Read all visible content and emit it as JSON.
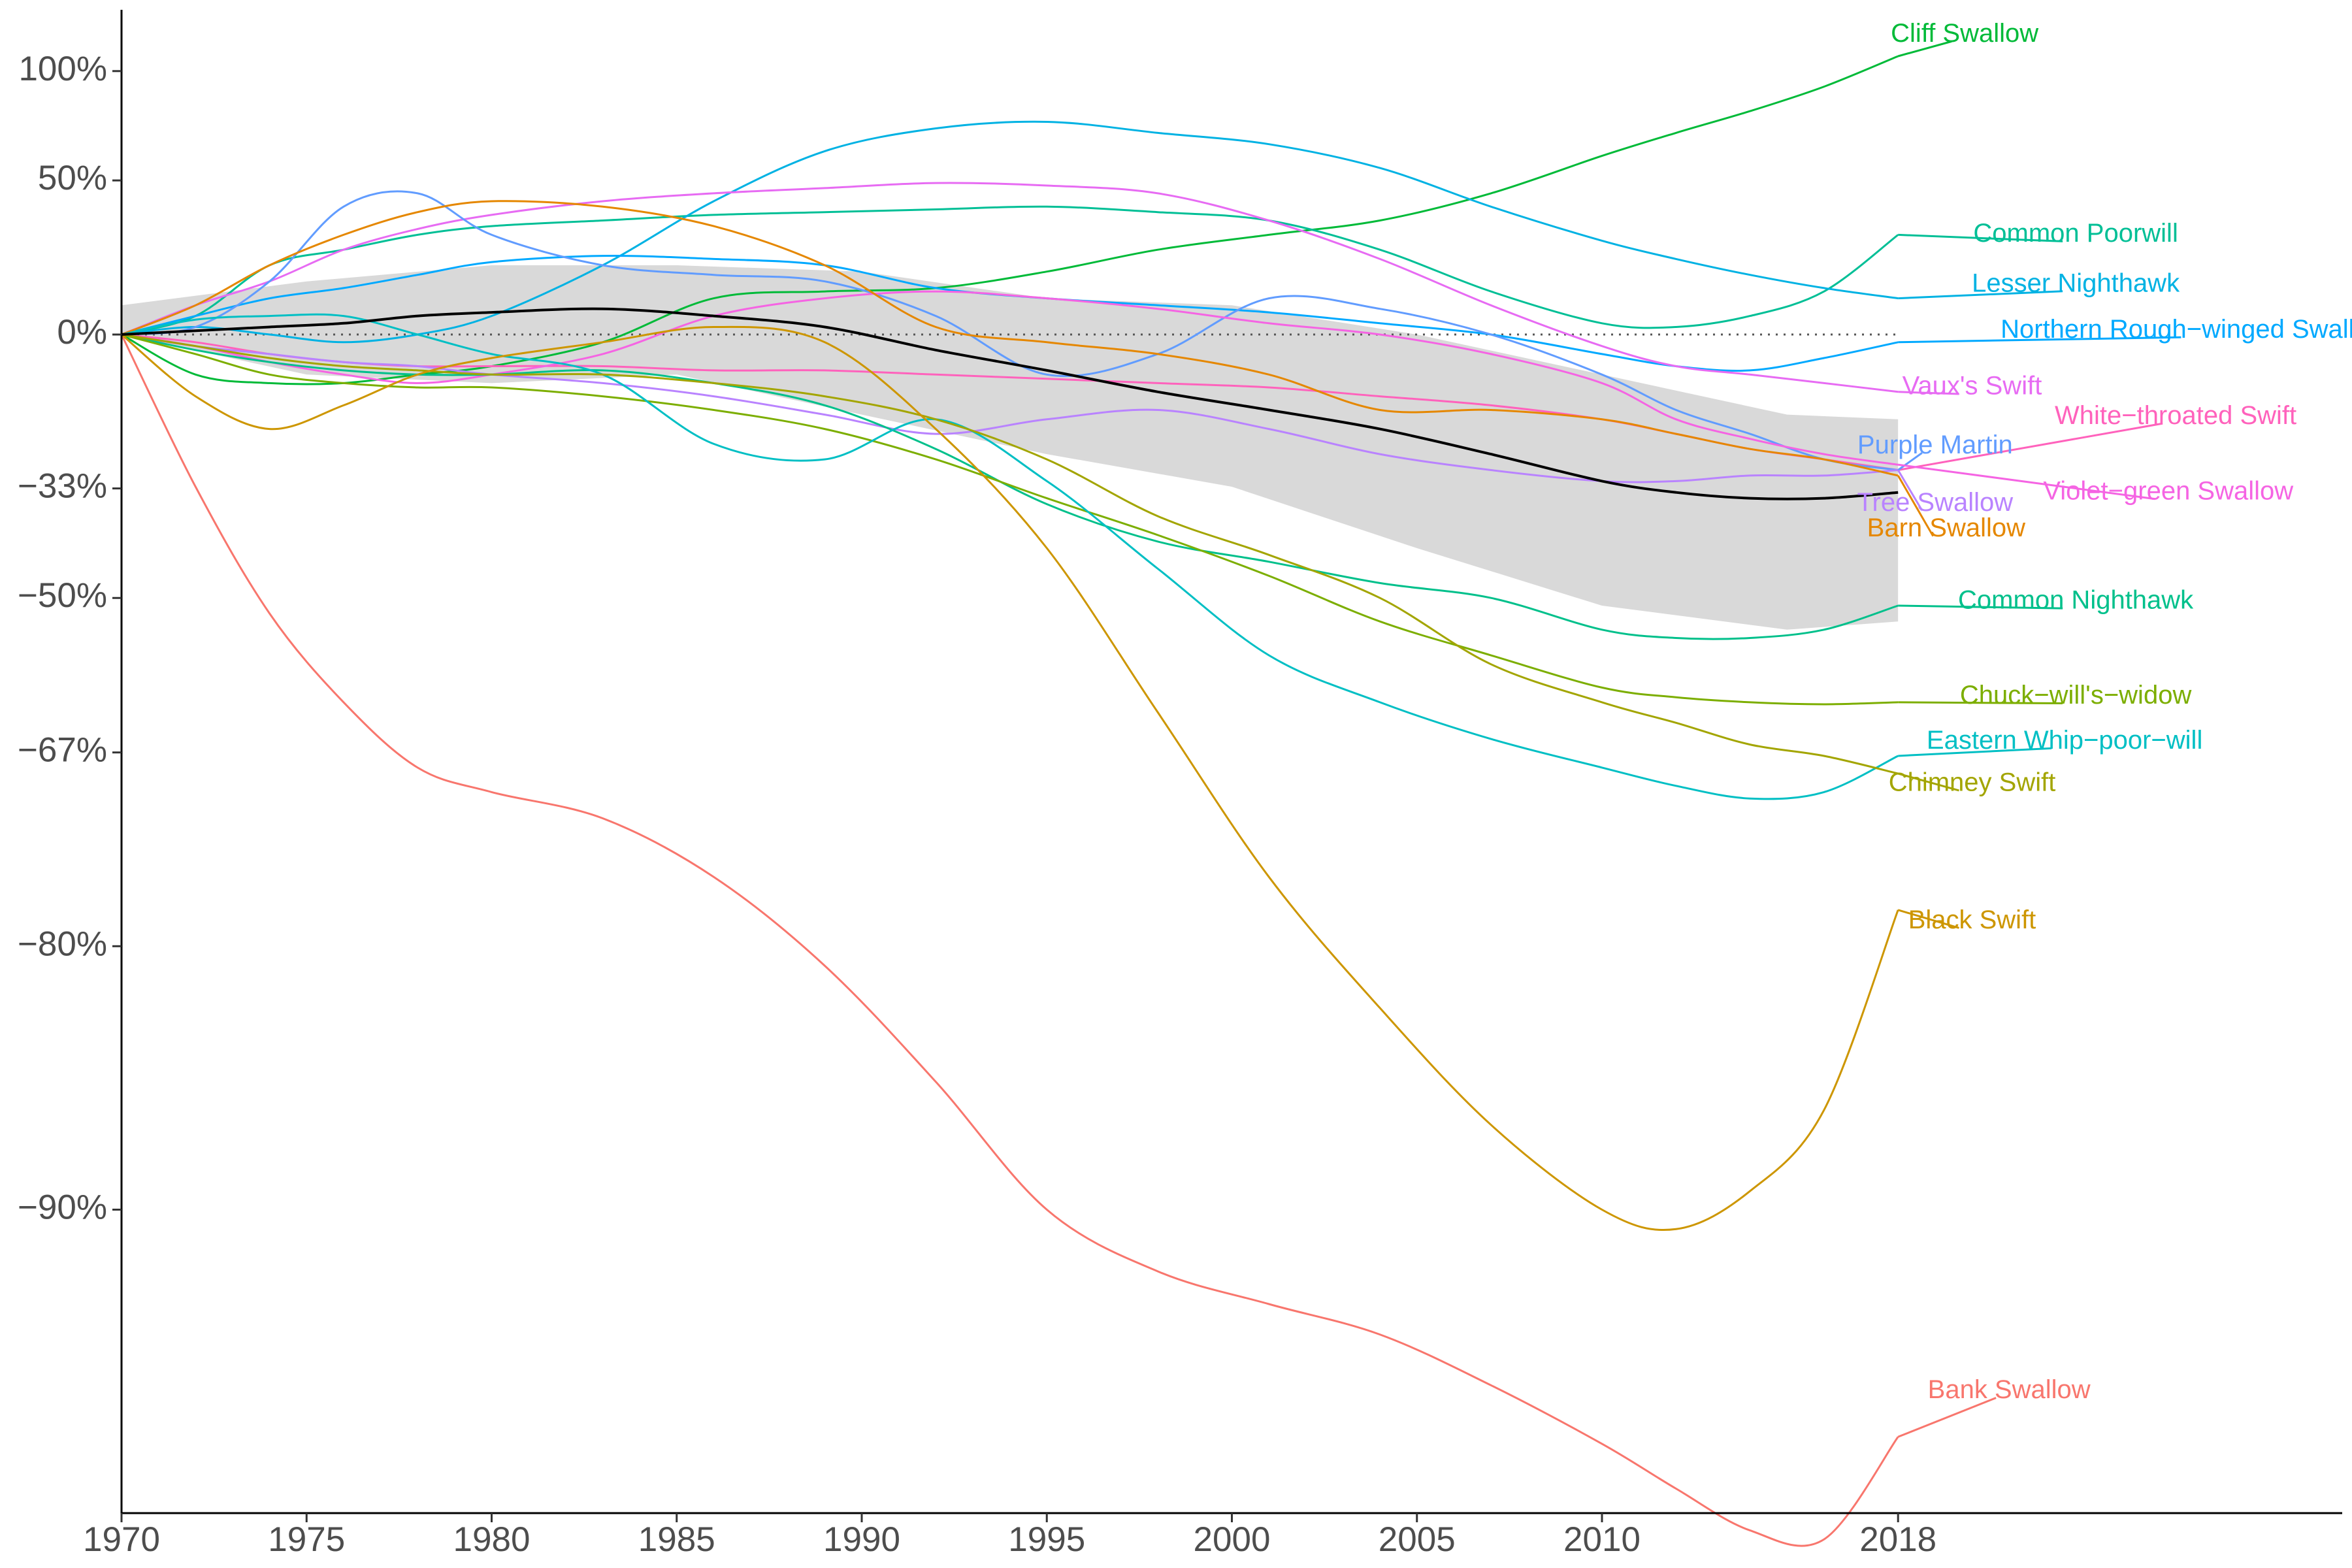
{
  "chart_data": {
    "type": "line",
    "title": "",
    "xlabel": "",
    "ylabel": "",
    "xlim": [
      1970,
      2030
    ],
    "x_ticks": [
      {
        "value": 1970,
        "label": "1970"
      },
      {
        "value": 1975,
        "label": "1975"
      },
      {
        "value": 1980,
        "label": "1980"
      },
      {
        "value": 1985,
        "label": "1985"
      },
      {
        "value": 1990,
        "label": "1990"
      },
      {
        "value": 1995,
        "label": "1995"
      },
      {
        "value": 2000,
        "label": "2000"
      },
      {
        "value": 2005,
        "label": "2005"
      },
      {
        "value": 2010,
        "label": "2010"
      },
      {
        "value": 2018,
        "label": "2018"
      }
    ],
    "y_scale": "log-ratio",
    "ylim": [
      -0.955,
      1.35
    ],
    "y_ticks": [
      {
        "value": 1.0,
        "label": "100%"
      },
      {
        "value": 0.5,
        "label": "50%"
      },
      {
        "value": 0.0,
        "label": "0%"
      },
      {
        "value": -0.333,
        "label": "−33%"
      },
      {
        "value": -0.5,
        "label": "−50%"
      },
      {
        "value": -0.667,
        "label": "−67%"
      },
      {
        "value": -0.8,
        "label": "−80%"
      },
      {
        "value": -0.9,
        "label": "−90%"
      }
    ],
    "zero_line": true,
    "grid": false,
    "legend": "none",
    "band": {
      "color": "#d9d9d9",
      "x": [
        1970,
        1975,
        1980,
        1985,
        1990,
        1995,
        2000,
        2005,
        2010,
        2015,
        2018
      ],
      "upper": [
        0.08,
        0.15,
        0.2,
        0.2,
        0.18,
        0.1,
        0.08,
        0.0,
        -0.1,
        -0.19,
        -0.2
      ],
      "lower": [
        0.0,
        -0.1,
        -0.12,
        -0.1,
        -0.19,
        -0.27,
        -0.33,
        -0.43,
        -0.51,
        -0.54,
        -0.53
      ]
    },
    "x": [
      1970,
      1972,
      1974,
      1976,
      1978,
      1980,
      1983,
      1986,
      1989,
      1992,
      1995,
      1998,
      2001,
      2004,
      2007,
      2010,
      2012,
      2014,
      2016,
      2018
    ],
    "series": [
      {
        "name": "Bank Swallow",
        "color": "#f8766d",
        "values": [
          0.0,
          -0.33,
          -0.52,
          -0.62,
          -0.68,
          -0.7,
          -0.72,
          -0.76,
          -0.81,
          -0.86,
          -0.9,
          -0.915,
          -0.922,
          -0.928,
          -0.937,
          -0.946,
          -0.952,
          -0.957,
          -0.958,
          -0.945
        ],
        "label_x": 2021.0,
        "label_y": -0.938
      },
      {
        "name": "Cliff Swallow",
        "color": "#00ba38",
        "values": [
          0.0,
          -0.1,
          -0.12,
          -0.12,
          -0.1,
          -0.08,
          -0.02,
          0.1,
          0.12,
          0.13,
          0.18,
          0.25,
          0.3,
          0.35,
          0.45,
          0.6,
          0.7,
          0.8,
          0.92,
          1.08
        ],
        "label_x": 2019.8,
        "label_y": 1.2
      },
      {
        "name": "Common Poorwill",
        "color": "#00bf96",
        "values": [
          0.0,
          0.05,
          0.2,
          0.25,
          0.3,
          0.33,
          0.35,
          0.37,
          0.38,
          0.39,
          0.4,
          0.38,
          0.35,
          0.25,
          0.12,
          0.03,
          0.02,
          0.05,
          0.12,
          0.3
        ],
        "label_x": 2022.8,
        "label_y": 0.3
      },
      {
        "name": "Lesser Nighthawk",
        "color": "#00b2e3",
        "values": [
          0.0,
          0.02,
          0.0,
          -0.02,
          0.0,
          0.05,
          0.2,
          0.42,
          0.62,
          0.72,
          0.75,
          0.7,
          0.65,
          0.55,
          0.4,
          0.28,
          0.22,
          0.17,
          0.13,
          0.1
        ],
        "label_x": 2022.8,
        "label_y": 0.14
      },
      {
        "name": "Northern Rough−winged Swallow",
        "color": "#00a9ff",
        "values": [
          0.0,
          0.05,
          0.1,
          0.13,
          0.17,
          0.21,
          0.23,
          0.22,
          0.2,
          0.13,
          0.1,
          0.08,
          0.06,
          0.03,
          0.0,
          -0.05,
          -0.08,
          -0.09,
          -0.06,
          -0.02
        ],
        "label_x": 2026.0,
        "label_y": 0.01
      },
      {
        "name": "Vaux's Swift",
        "color": "#e76bf3",
        "values": [
          0.0,
          0.08,
          0.15,
          0.25,
          0.32,
          0.37,
          0.42,
          0.45,
          0.47,
          0.49,
          0.48,
          0.45,
          0.35,
          0.22,
          0.08,
          -0.03,
          -0.08,
          -0.1,
          -0.12,
          -0.14
        ],
        "label_x": 2020.0,
        "label_y": -0.13
      },
      {
        "name": "White−throated Swift",
        "color": "#ff62bc",
        "values": [
          0.0,
          -0.02,
          -0.05,
          -0.07,
          -0.08,
          -0.08,
          -0.08,
          -0.09,
          -0.09,
          -0.1,
          -0.11,
          -0.12,
          -0.13,
          -0.15,
          -0.17,
          -0.2,
          -0.23,
          -0.26,
          -0.28,
          -0.3
        ],
        "label_x": 2025.5,
        "label_y": -0.195
      },
      {
        "name": "Purple Martin",
        "color": "#619cff",
        "values": [
          0.0,
          0.02,
          0.15,
          0.4,
          0.45,
          0.3,
          0.2,
          0.17,
          0.15,
          0.05,
          -0.1,
          -0.05,
          0.1,
          0.07,
          0.0,
          -0.1,
          -0.18,
          -0.23,
          -0.28,
          -0.3
        ],
        "label_x": 2019.0,
        "label_y": -0.255
      },
      {
        "name": "Violet−green Swallow",
        "color": "#f564e3",
        "values": [
          0.0,
          -0.03,
          -0.07,
          -0.1,
          -0.12,
          -0.1,
          -0.05,
          0.05,
          0.1,
          0.12,
          0.1,
          0.07,
          0.03,
          0.0,
          -0.05,
          -0.12,
          -0.2,
          -0.24,
          -0.27,
          -0.29
        ],
        "label_x": 2025.3,
        "label_y": -0.34
      },
      {
        "name": "Tree Swallow",
        "color": "#b983ff",
        "values": [
          0.0,
          -0.03,
          -0.05,
          -0.07,
          -0.08,
          -0.1,
          -0.12,
          -0.15,
          -0.19,
          -0.23,
          -0.2,
          -0.18,
          -0.22,
          -0.27,
          -0.3,
          -0.32,
          -0.32,
          -0.31,
          -0.31,
          -0.3
        ],
        "label_x": 2019.0,
        "label_y": -0.3595
      },
      {
        "name": "Barn Swallow",
        "color": "#e58700",
        "values": [
          0.0,
          0.08,
          0.2,
          0.3,
          0.38,
          0.42,
          0.4,
          0.33,
          0.2,
          0.02,
          -0.02,
          -0.05,
          -0.1,
          -0.18,
          -0.18,
          -0.2,
          -0.23,
          -0.26,
          -0.28,
          -0.31
        ],
        "label_x": 2019.3,
        "label_y": -0.4015
      },
      {
        "name": "Common Nighthawk",
        "color": "#00c08b",
        "values": [
          0.0,
          -0.04,
          -0.07,
          -0.09,
          -0.1,
          -0.1,
          -0.09,
          -0.12,
          -0.17,
          -0.26,
          -0.36,
          -0.42,
          -0.45,
          -0.48,
          -0.5,
          -0.54,
          -0.55,
          -0.55,
          -0.54,
          -0.51
        ],
        "label_x": 2022.8,
        "label_y": -0.505
      },
      {
        "name": "Chuck−will's−widow",
        "color": "#7cae00",
        "values": [
          0.0,
          -0.05,
          -0.1,
          -0.12,
          -0.13,
          -0.13,
          -0.15,
          -0.18,
          -0.22,
          -0.28,
          -0.35,
          -0.41,
          -0.47,
          -0.53,
          -0.57,
          -0.605,
          -0.615,
          -0.62,
          -0.622,
          -0.62
        ],
        "label_x": 2022.8,
        "label_y": -0.6145
      },
      {
        "name": "Eastern Whip−poor−will",
        "color": "#00bfc4",
        "values": [
          0.0,
          0.04,
          0.05,
          0.05,
          0.0,
          -0.05,
          -0.1,
          -0.25,
          -0.28,
          -0.2,
          -0.32,
          -0.46,
          -0.57,
          -0.62,
          -0.655,
          -0.68,
          -0.695,
          -0.705,
          -0.7,
          -0.67
        ],
        "label_x": 2022.5,
        "label_y": -0.6575
      },
      {
        "name": "Chimney Swift",
        "color": "#a3a500",
        "values": [
          0.0,
          -0.03,
          -0.06,
          -0.08,
          -0.09,
          -0.1,
          -0.1,
          -0.12,
          -0.15,
          -0.2,
          -0.28,
          -0.38,
          -0.44,
          -0.5,
          -0.58,
          -0.62,
          -0.64,
          -0.66,
          -0.67,
          -0.685
        ],
        "label_x": 2020.0,
        "label_y": -0.6935
      },
      {
        "name": "Black Swift",
        "color": "#cd9600",
        "values": [
          0.0,
          -0.15,
          -0.22,
          -0.17,
          -0.1,
          -0.06,
          -0.02,
          0.02,
          -0.02,
          -0.22,
          -0.43,
          -0.63,
          -0.76,
          -0.83,
          -0.875,
          -0.9,
          -0.905,
          -0.895,
          -0.87,
          -0.78
        ],
        "label_x": 2020.0,
        "label_y": -0.7865
      },
      {
        "name": "",
        "color": "#000000",
        "values": [
          0.0,
          0.01,
          0.02,
          0.03,
          0.05,
          0.06,
          0.07,
          0.05,
          0.02,
          -0.04,
          -0.09,
          -0.14,
          -0.18,
          -0.22,
          -0.27,
          -0.32,
          -0.34,
          -0.35,
          -0.35,
          -0.34
        ]
      }
    ]
  }
}
